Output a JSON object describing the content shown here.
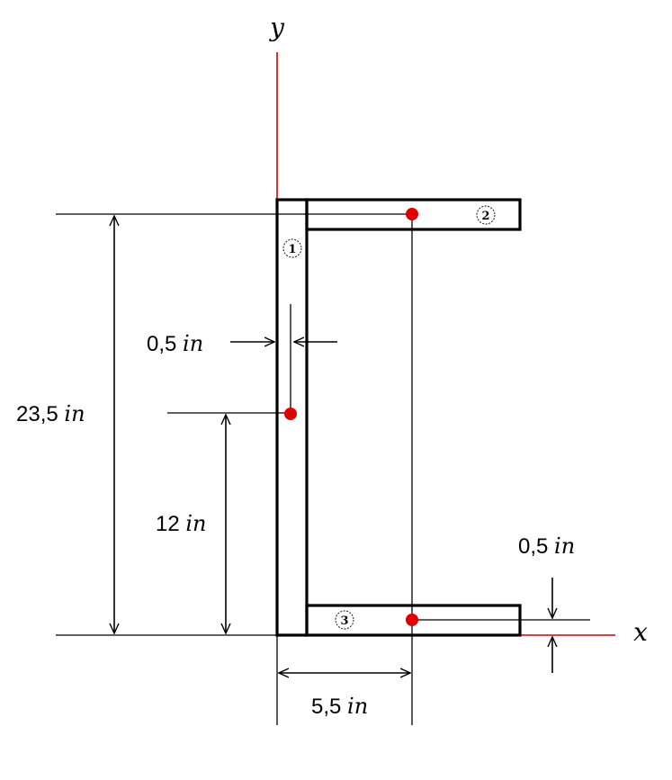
{
  "axes": {
    "x_label": "x",
    "y_label": "y",
    "axis_color": "#d40000"
  },
  "section": {
    "parts": [
      {
        "id": "1",
        "label": "1"
      },
      {
        "id": "2",
        "label": "2"
      },
      {
        "id": "3",
        "label": "3"
      }
    ],
    "outline_color": "#000000",
    "centroid_color": "#e00000"
  },
  "dimensions": {
    "total_height": {
      "value": "23,5",
      "unit": "in"
    },
    "centroid_web": {
      "value": "12",
      "unit": "in"
    },
    "web_thickness": {
      "value": "0,5",
      "unit": "in"
    },
    "flange_thickness": {
      "value": "0,5",
      "unit": "in"
    },
    "flange_centroid_x": {
      "value": "5,5",
      "unit": "in"
    }
  }
}
